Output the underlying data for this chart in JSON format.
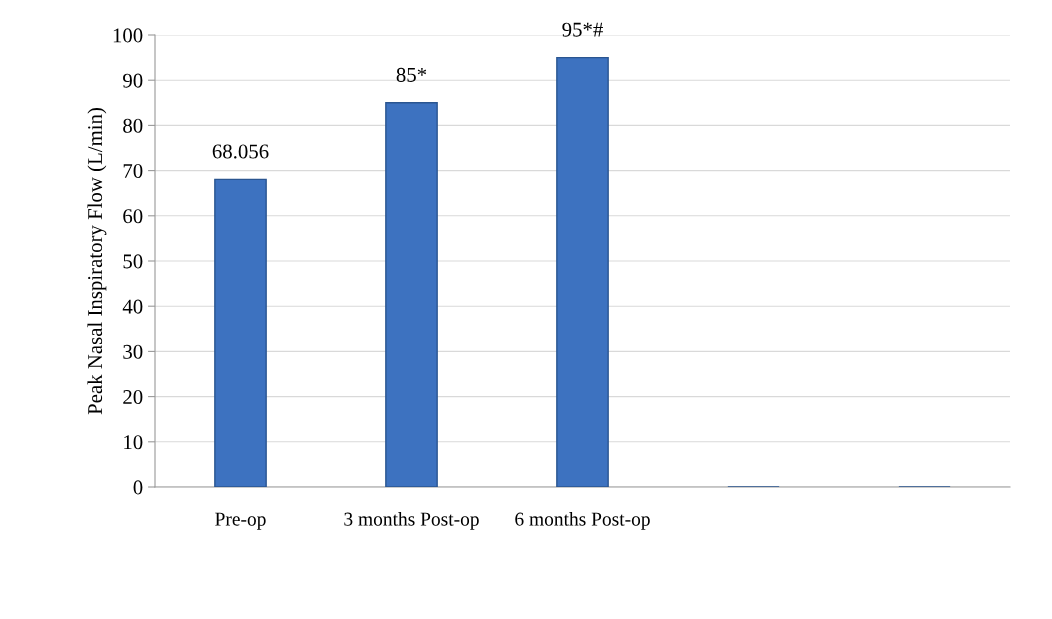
{
  "chart_data": {
    "type": "bar",
    "ylabel": "Peak Nasal Inspiratory Flow (L/min)",
    "categories": [
      "Pre-op",
      "3 months Post-op",
      "6 months Post-op",
      null,
      null
    ],
    "values": [
      68.056,
      85,
      95,
      null,
      null
    ],
    "value_labels": [
      "68.056",
      "85*",
      "95*#",
      null,
      null
    ],
    "color": "#3d72c0",
    "ylim": [
      0,
      100
    ],
    "yticks": [
      0,
      10,
      20,
      30,
      40,
      50,
      60,
      70,
      80,
      90,
      100
    ],
    "grid": "y",
    "legend": false
  }
}
